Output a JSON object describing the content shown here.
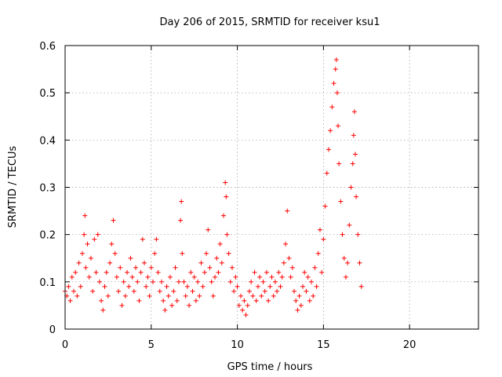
{
  "chart_data": {
    "type": "scatter",
    "title": "Day 206 of 2015, SRMTID for receiver ksu1",
    "xlabel": "GPS time / hours",
    "ylabel": "SRMTID / TECUs",
    "xlim": [
      0,
      24
    ],
    "ylim": [
      0,
      0.6
    ],
    "xticks": [
      0,
      5,
      10,
      15,
      20
    ],
    "yticks": [
      0,
      0.1,
      0.2,
      0.3,
      0.4,
      0.5,
      0.6
    ],
    "xtick_labels": [
      "0",
      "5",
      "10",
      "15",
      "20"
    ],
    "ytick_labels": [
      "0",
      "0.1",
      "0.2",
      "0.3",
      "0.4",
      "0.5",
      "0.6"
    ],
    "grid": true,
    "series": [
      {
        "name": "SRMTID",
        "marker": "+",
        "color": "#ff0000",
        "points": [
          [
            0.0,
            0.08
          ],
          [
            0.1,
            0.07
          ],
          [
            0.2,
            0.09
          ],
          [
            0.3,
            0.06
          ],
          [
            0.4,
            0.11
          ],
          [
            0.5,
            0.08
          ],
          [
            0.6,
            0.12
          ],
          [
            0.7,
            0.07
          ],
          [
            0.8,
            0.14
          ],
          [
            0.9,
            0.09
          ],
          [
            1.0,
            0.16
          ],
          [
            1.1,
            0.2
          ],
          [
            1.15,
            0.24
          ],
          [
            1.2,
            0.13
          ],
          [
            1.3,
            0.18
          ],
          [
            1.4,
            0.11
          ],
          [
            1.5,
            0.15
          ],
          [
            1.6,
            0.08
          ],
          [
            1.7,
            0.19
          ],
          [
            1.8,
            0.12
          ],
          [
            1.9,
            0.2
          ],
          [
            2.0,
            0.1
          ],
          [
            2.1,
            0.06
          ],
          [
            2.2,
            0.04
          ],
          [
            2.3,
            0.09
          ],
          [
            2.4,
            0.12
          ],
          [
            2.5,
            0.07
          ],
          [
            2.6,
            0.14
          ],
          [
            2.7,
            0.18
          ],
          [
            2.8,
            0.23
          ],
          [
            2.9,
            0.16
          ],
          [
            3.0,
            0.11
          ],
          [
            3.1,
            0.08
          ],
          [
            3.2,
            0.13
          ],
          [
            3.3,
            0.05
          ],
          [
            3.4,
            0.1
          ],
          [
            3.5,
            0.07
          ],
          [
            3.6,
            0.12
          ],
          [
            3.7,
            0.09
          ],
          [
            3.8,
            0.15
          ],
          [
            3.9,
            0.11
          ],
          [
            4.0,
            0.08
          ],
          [
            4.1,
            0.13
          ],
          [
            4.2,
            0.1
          ],
          [
            4.3,
            0.06
          ],
          [
            4.4,
            0.12
          ],
          [
            4.5,
            0.19
          ],
          [
            4.6,
            0.14
          ],
          [
            4.7,
            0.09
          ],
          [
            4.8,
            0.11
          ],
          [
            4.9,
            0.07
          ],
          [
            5.0,
            0.13
          ],
          [
            5.1,
            0.1
          ],
          [
            5.2,
            0.16
          ],
          [
            5.3,
            0.19
          ],
          [
            5.4,
            0.12
          ],
          [
            5.5,
            0.08
          ],
          [
            5.6,
            0.1
          ],
          [
            5.7,
            0.06
          ],
          [
            5.8,
            0.04
          ],
          [
            5.9,
            0.09
          ],
          [
            6.0,
            0.07
          ],
          [
            6.1,
            0.11
          ],
          [
            6.2,
            0.05
          ],
          [
            6.3,
            0.08
          ],
          [
            6.4,
            0.13
          ],
          [
            6.5,
            0.06
          ],
          [
            6.6,
            0.1
          ],
          [
            6.7,
            0.23
          ],
          [
            6.75,
            0.27
          ],
          [
            6.8,
            0.16
          ],
          [
            6.9,
            0.1
          ],
          [
            7.0,
            0.07
          ],
          [
            7.1,
            0.09
          ],
          [
            7.2,
            0.05
          ],
          [
            7.3,
            0.12
          ],
          [
            7.4,
            0.08
          ],
          [
            7.5,
            0.11
          ],
          [
            7.6,
            0.06
          ],
          [
            7.7,
            0.1
          ],
          [
            7.8,
            0.07
          ],
          [
            7.9,
            0.14
          ],
          [
            8.0,
            0.09
          ],
          [
            8.1,
            0.12
          ],
          [
            8.2,
            0.16
          ],
          [
            8.3,
            0.21
          ],
          [
            8.4,
            0.13
          ],
          [
            8.5,
            0.1
          ],
          [
            8.6,
            0.07
          ],
          [
            8.7,
            0.11
          ],
          [
            8.8,
            0.15
          ],
          [
            8.9,
            0.12
          ],
          [
            9.0,
            0.18
          ],
          [
            9.1,
            0.14
          ],
          [
            9.2,
            0.24
          ],
          [
            9.3,
            0.31
          ],
          [
            9.35,
            0.28
          ],
          [
            9.4,
            0.2
          ],
          [
            9.5,
            0.16
          ],
          [
            9.6,
            0.1
          ],
          [
            9.7,
            0.13
          ],
          [
            9.8,
            0.08
          ],
          [
            9.9,
            0.11
          ],
          [
            10.0,
            0.09
          ],
          [
            10.1,
            0.05
          ],
          [
            10.2,
            0.07
          ],
          [
            10.3,
            0.04
          ],
          [
            10.4,
            0.06
          ],
          [
            10.5,
            0.03
          ],
          [
            10.6,
            0.05
          ],
          [
            10.7,
            0.08
          ],
          [
            10.8,
            0.1
          ],
          [
            10.9,
            0.07
          ],
          [
            11.0,
            0.12
          ],
          [
            11.1,
            0.06
          ],
          [
            11.2,
            0.09
          ],
          [
            11.3,
            0.11
          ],
          [
            11.4,
            0.07
          ],
          [
            11.5,
            0.1
          ],
          [
            11.6,
            0.08
          ],
          [
            11.7,
            0.12
          ],
          [
            11.8,
            0.06
          ],
          [
            11.9,
            0.09
          ],
          [
            12.0,
            0.11
          ],
          [
            12.1,
            0.07
          ],
          [
            12.2,
            0.1
          ],
          [
            12.3,
            0.08
          ],
          [
            12.4,
            0.12
          ],
          [
            12.5,
            0.09
          ],
          [
            12.6,
            0.11
          ],
          [
            12.7,
            0.14
          ],
          [
            12.8,
            0.18
          ],
          [
            12.9,
            0.25
          ],
          [
            13.0,
            0.15
          ],
          [
            13.1,
            0.11
          ],
          [
            13.2,
            0.13
          ],
          [
            13.3,
            0.08
          ],
          [
            13.4,
            0.06
          ],
          [
            13.5,
            0.04
          ],
          [
            13.6,
            0.07
          ],
          [
            13.7,
            0.05
          ],
          [
            13.8,
            0.09
          ],
          [
            13.9,
            0.12
          ],
          [
            14.0,
            0.08
          ],
          [
            14.1,
            0.11
          ],
          [
            14.2,
            0.06
          ],
          [
            14.3,
            0.1
          ],
          [
            14.4,
            0.07
          ],
          [
            14.5,
            0.13
          ],
          [
            14.6,
            0.09
          ],
          [
            14.7,
            0.16
          ],
          [
            14.8,
            0.21
          ],
          [
            14.9,
            0.12
          ],
          [
            15.0,
            0.19
          ],
          [
            15.1,
            0.26
          ],
          [
            15.2,
            0.33
          ],
          [
            15.3,
            0.38
          ],
          [
            15.4,
            0.42
          ],
          [
            15.5,
            0.47
          ],
          [
            15.6,
            0.52
          ],
          [
            15.7,
            0.55
          ],
          [
            15.75,
            0.57
          ],
          [
            15.8,
            0.5
          ],
          [
            15.85,
            0.43
          ],
          [
            15.9,
            0.35
          ],
          [
            16.0,
            0.27
          ],
          [
            16.1,
            0.2
          ],
          [
            16.2,
            0.15
          ],
          [
            16.3,
            0.11
          ],
          [
            16.4,
            0.14
          ],
          [
            16.5,
            0.22
          ],
          [
            16.6,
            0.3
          ],
          [
            16.7,
            0.35
          ],
          [
            16.75,
            0.41
          ],
          [
            16.8,
            0.46
          ],
          [
            16.85,
            0.37
          ],
          [
            16.9,
            0.28
          ],
          [
            17.0,
            0.2
          ],
          [
            17.1,
            0.14
          ],
          [
            17.2,
            0.09
          ]
        ]
      }
    ]
  }
}
